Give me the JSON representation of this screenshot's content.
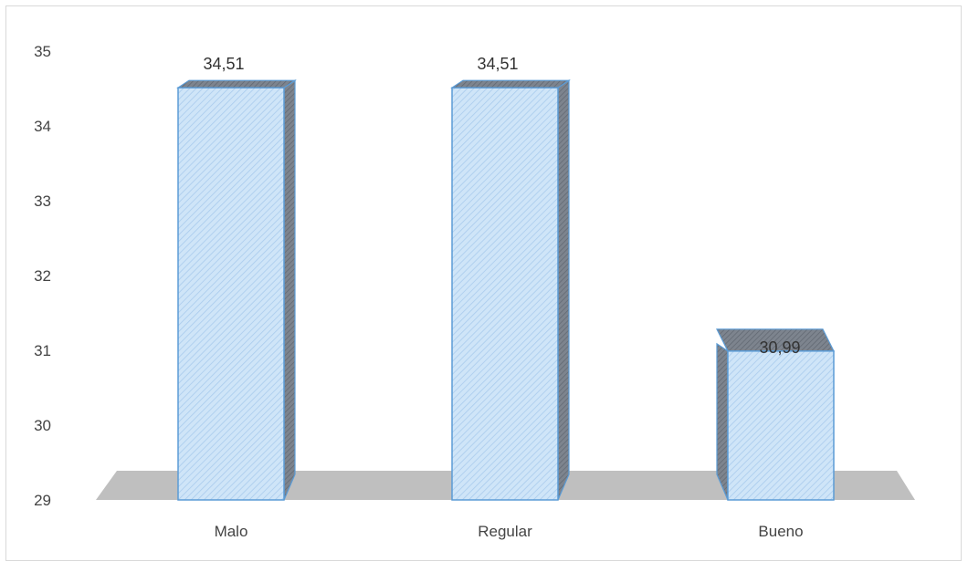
{
  "chart_data": {
    "type": "bar",
    "categories": [
      "Malo",
      "Regular",
      "Bueno"
    ],
    "values": [
      34.51,
      34.51,
      30.99
    ],
    "data_labels": [
      "34,51",
      "34,51",
      "30,99"
    ],
    "title": "",
    "xlabel": "",
    "ylabel": "",
    "ylim": [
      29,
      35
    ],
    "yticks": [
      "29",
      "30",
      "31",
      "32",
      "33",
      "34",
      "35"
    ],
    "grid": false,
    "legend": "none",
    "style": "3d-column",
    "colors": {
      "bar_fill": "#c6e0f7",
      "bar_stroke": "#5b9bd5",
      "bar_side": "#8a8f98",
      "floor": "#bfbfbf",
      "border": "#d9d9d9"
    }
  }
}
